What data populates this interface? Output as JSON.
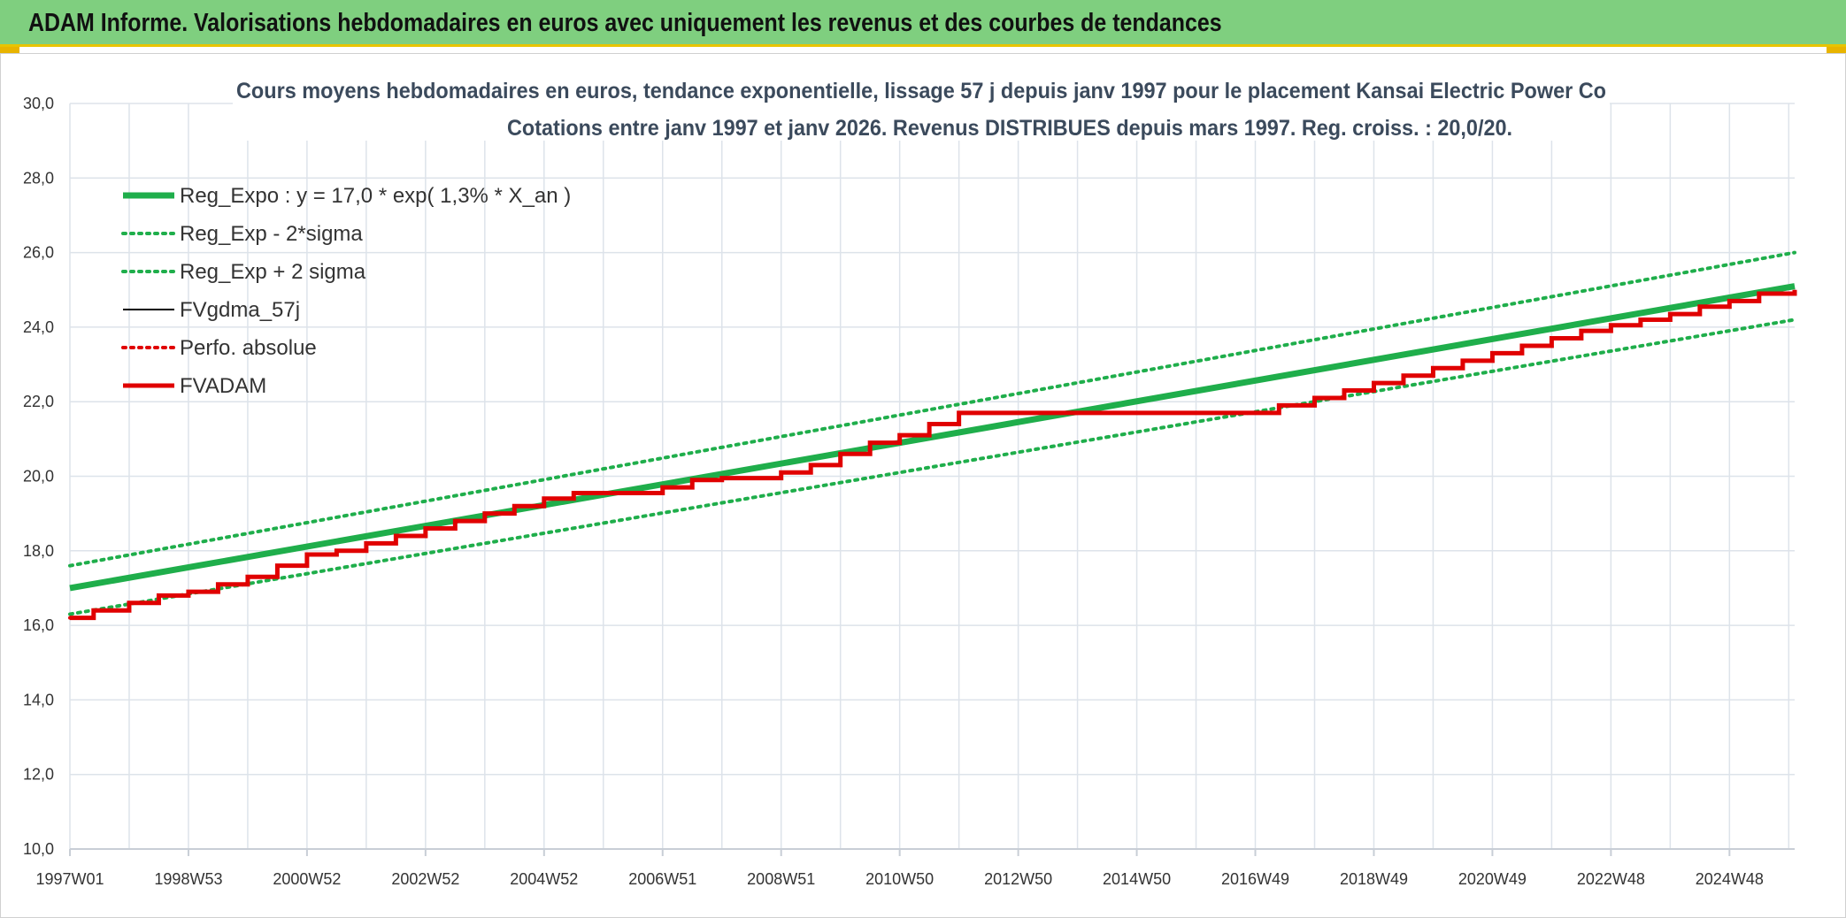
{
  "banner": {
    "title": "ADAM Informe. Valorisations hebdomadaires en euros avec uniquement les revenus et des courbes de tendances"
  },
  "colors": {
    "banner_bg": "#7fcf7f",
    "accent_yellow": "#e8c400",
    "trend_green": "#1fae4b",
    "fvadam_red": "#e00000",
    "fvgdma_black": "#000000",
    "grid": "#dde3ea"
  },
  "chart_data": {
    "type": "line",
    "title": "Cours moyens hebdomadaires en euros, tendance exponentielle, lissage 57 j depuis janv 1997 pour le placement Kansai Electric Power Co",
    "subtitle": "Cotations entre janv 1997 et janv 2026. Revenus DISTRIBUES depuis mars 1997. Reg. croiss. : 20,0/20.",
    "xlabel": "",
    "ylabel": "",
    "ylim": [
      10,
      30
    ],
    "y_ticks": [
      "10,0",
      "12,0",
      "14,0",
      "16,0",
      "18,0",
      "20,0",
      "22,0",
      "24,0",
      "26,0",
      "28,0",
      "30,0"
    ],
    "xlim": [
      1997.0,
      2026.1
    ],
    "x_ticks": [
      "1997W01",
      "1998W53",
      "2000W52",
      "2002W52",
      "2004W52",
      "2006W51",
      "2008W51",
      "2010W50",
      "2012W50",
      "2014W50",
      "2016W49",
      "2018W49",
      "2020W49",
      "2022W48",
      "2024W48"
    ],
    "grid": true,
    "legend_position": "top-left",
    "series": [
      {
        "name": "Reg_Expo : y = 17,0 * exp( 1,3% *  X_an )",
        "style": "solid-thick",
        "color": "#1fae4b",
        "x": [
          1997.0,
          2026.1
        ],
        "y": [
          17.0,
          25.1
        ]
      },
      {
        "name": "Reg_Exp - 2*sigma",
        "style": "dotted",
        "color": "#1fae4b",
        "x": [
          1997.0,
          2026.1
        ],
        "y": [
          16.3,
          24.2
        ]
      },
      {
        "name": "Reg_Exp + 2 sigma",
        "style": "dotted",
        "color": "#1fae4b",
        "x": [
          1997.0,
          2026.1
        ],
        "y": [
          17.6,
          26.0
        ]
      },
      {
        "name": "FVgdma_57j",
        "style": "solid-thin",
        "color": "#000000",
        "x": [
          1997.0,
          1997.4,
          1998.0,
          1998.5,
          1999.0,
          1999.5,
          2000.0,
          2000.5,
          2001.0,
          2001.5,
          2002.0,
          2002.5,
          2003.0,
          2003.5,
          2004.0,
          2004.5,
          2005.0,
          2005.5,
          2006.0,
          2006.5,
          2007.0,
          2007.5,
          2008.0,
          2008.5,
          2009.0,
          2009.5,
          2010.0,
          2010.5,
          2011.0,
          2011.5,
          2012.0,
          2013.0,
          2014.0,
          2015.0,
          2016.0,
          2016.8,
          2017.4,
          2018.0,
          2018.5,
          2019.0,
          2019.5,
          2020.0,
          2020.5,
          2021.0,
          2021.5,
          2022.0,
          2022.5,
          2023.0,
          2023.5,
          2024.0,
          2024.5,
          2025.0,
          2025.5,
          2026.1
        ],
        "y": [
          16.2,
          16.4,
          16.6,
          16.8,
          16.9,
          17.1,
          17.3,
          17.6,
          17.9,
          18.0,
          18.2,
          18.4,
          18.6,
          18.8,
          19.0,
          19.2,
          19.4,
          19.55,
          19.55,
          19.55,
          19.7,
          19.9,
          19.95,
          19.95,
          20.1,
          20.3,
          20.6,
          20.9,
          21.1,
          21.4,
          21.7,
          21.7,
          21.7,
          21.7,
          21.7,
          21.7,
          21.9,
          22.1,
          22.3,
          22.5,
          22.7,
          22.9,
          23.1,
          23.3,
          23.5,
          23.7,
          23.9,
          24.05,
          24.2,
          24.35,
          24.55,
          24.7,
          24.9,
          25.0
        ]
      },
      {
        "name": "Perfo. absolue",
        "style": "dotted",
        "color": "#e00000",
        "x": [
          1997.0,
          1997.4,
          1998.0,
          1998.5,
          1999.0,
          1999.5,
          2000.0,
          2000.5,
          2001.0,
          2001.5,
          2002.0,
          2002.5,
          2003.0,
          2003.5,
          2004.0,
          2004.5,
          2005.0,
          2005.5,
          2006.0,
          2006.5,
          2007.0,
          2007.5,
          2008.0,
          2008.5,
          2009.0,
          2009.5,
          2010.0,
          2010.5,
          2011.0,
          2011.5,
          2012.0,
          2013.0,
          2014.0,
          2015.0,
          2016.0,
          2016.8,
          2017.4,
          2018.0,
          2018.5,
          2019.0,
          2019.5,
          2020.0,
          2020.5,
          2021.0,
          2021.5,
          2022.0,
          2022.5,
          2023.0,
          2023.5,
          2024.0,
          2024.5,
          2025.0,
          2025.5,
          2026.1
        ],
        "y": [
          16.2,
          16.4,
          16.6,
          16.8,
          16.9,
          17.1,
          17.3,
          17.6,
          17.9,
          18.0,
          18.2,
          18.4,
          18.6,
          18.8,
          19.0,
          19.2,
          19.4,
          19.55,
          19.55,
          19.55,
          19.7,
          19.9,
          19.95,
          19.95,
          20.1,
          20.3,
          20.6,
          20.9,
          21.1,
          21.4,
          21.7,
          21.7,
          21.7,
          21.7,
          21.7,
          21.7,
          21.9,
          22.1,
          22.3,
          22.5,
          22.7,
          22.9,
          23.1,
          23.3,
          23.5,
          23.7,
          23.9,
          24.05,
          24.2,
          24.35,
          24.55,
          24.7,
          24.9,
          25.0
        ]
      },
      {
        "name": "FVADAM",
        "style": "step-thick",
        "color": "#e00000",
        "x": [
          1997.0,
          1997.4,
          1998.0,
          1998.5,
          1999.0,
          1999.5,
          2000.0,
          2000.5,
          2001.0,
          2001.5,
          2002.0,
          2002.5,
          2003.0,
          2003.5,
          2004.0,
          2004.5,
          2005.0,
          2005.5,
          2006.0,
          2006.5,
          2007.0,
          2007.5,
          2008.0,
          2008.5,
          2009.0,
          2009.5,
          2010.0,
          2010.5,
          2011.0,
          2011.5,
          2012.0,
          2013.0,
          2014.0,
          2015.0,
          2016.0,
          2016.8,
          2017.4,
          2018.0,
          2018.5,
          2019.0,
          2019.5,
          2020.0,
          2020.5,
          2021.0,
          2021.5,
          2022.0,
          2022.5,
          2023.0,
          2023.5,
          2024.0,
          2024.5,
          2025.0,
          2025.5,
          2026.1
        ],
        "y": [
          16.2,
          16.4,
          16.6,
          16.8,
          16.9,
          17.1,
          17.3,
          17.6,
          17.9,
          18.0,
          18.2,
          18.4,
          18.6,
          18.8,
          19.0,
          19.2,
          19.4,
          19.55,
          19.55,
          19.55,
          19.7,
          19.9,
          19.95,
          19.95,
          20.1,
          20.3,
          20.6,
          20.9,
          21.1,
          21.4,
          21.7,
          21.7,
          21.7,
          21.7,
          21.7,
          21.7,
          21.9,
          22.1,
          22.3,
          22.5,
          22.7,
          22.9,
          23.1,
          23.3,
          23.5,
          23.7,
          23.9,
          24.05,
          24.2,
          24.35,
          24.55,
          24.7,
          24.9,
          25.0
        ]
      }
    ]
  }
}
